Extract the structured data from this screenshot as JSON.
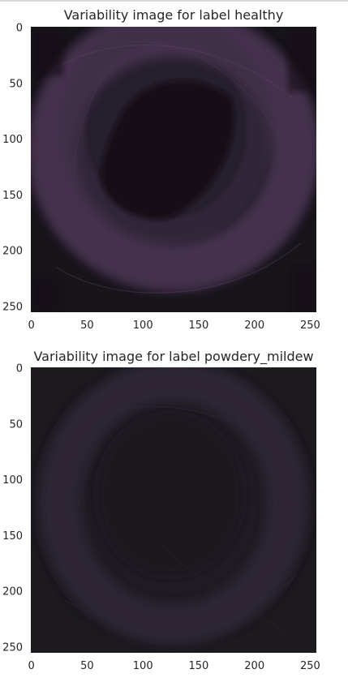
{
  "chart_data": [
    {
      "type": "image",
      "title": "Variability image for label healthy",
      "xlim": [
        0,
        255
      ],
      "ylim": [
        0,
        255
      ],
      "xticks": [
        0,
        50,
        100,
        150,
        200,
        250
      ],
      "yticks": [
        0,
        50,
        100,
        150,
        200,
        250
      ],
      "xtick_labels": [
        "0",
        "50",
        "100",
        "150",
        "200",
        "250"
      ],
      "ytick_labels": [
        "0",
        "50",
        "100",
        "150",
        "200",
        "250"
      ],
      "grid": false,
      "colors": {
        "background": "#17141a",
        "ring": "#4a3453",
        "glow": "#3e2f45"
      }
    },
    {
      "type": "image",
      "title": "Variability image for label powdery_mildew",
      "xlim": [
        0,
        255
      ],
      "ylim": [
        0,
        255
      ],
      "xticks": [
        0,
        50,
        100,
        150,
        200,
        250
      ],
      "yticks": [
        0,
        50,
        100,
        150,
        200,
        250
      ],
      "xtick_labels": [
        "0",
        "50",
        "100",
        "150",
        "200",
        "250"
      ],
      "ytick_labels": [
        "0",
        "50",
        "100",
        "150",
        "200",
        "250"
      ],
      "grid": false,
      "colors": {
        "background": "#1c1a1f",
        "ring": "#2d2535",
        "glow": "#26212c"
      }
    }
  ]
}
